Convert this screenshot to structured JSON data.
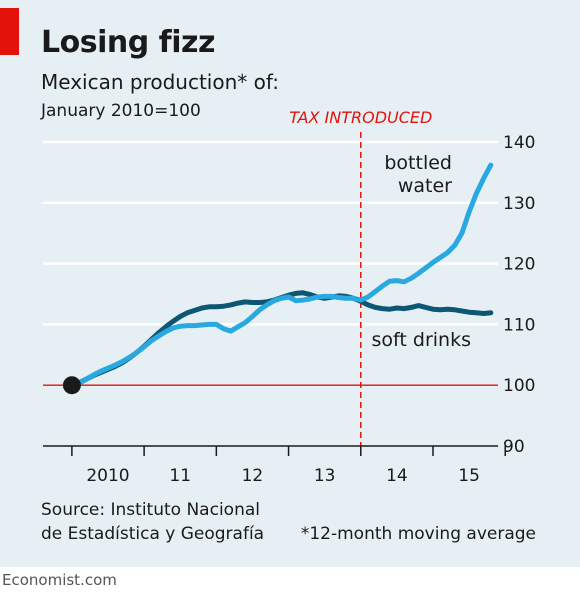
{
  "header": {
    "title": "Losing fizz",
    "subtitle": "Mexican production* of:",
    "unit": "January 2010=100"
  },
  "footer": {
    "source_line1": "Source: Instituto Nacional",
    "source_line2": "de Estadística y Geografía",
    "note": "*12-month moving average",
    "brand": "Economist.com"
  },
  "colors": {
    "panel_bg": "#e6f0f4",
    "bottled_water": "#2aa8e0",
    "soft_drinks": "#0e5774",
    "tax_line": "#e3120b",
    "baseline": "#e3120b"
  },
  "chart_data": {
    "type": "line",
    "title": "Losing fizz",
    "subtitle": "Mexican production* of:",
    "ylabel": "January 2010=100",
    "ylim": [
      90,
      140
    ],
    "yticks": [
      90,
      100,
      110,
      120,
      130,
      140
    ],
    "xlim": [
      2009.6,
      2015.9
    ],
    "xticks": [
      {
        "x": 2010.5,
        "label": "2010"
      },
      {
        "x": 2011.5,
        "label": "11"
      },
      {
        "x": 2012.5,
        "label": "12"
      },
      {
        "x": 2013.5,
        "label": "13"
      },
      {
        "x": 2014.5,
        "label": "14"
      },
      {
        "x": 2015.5,
        "label": "15"
      }
    ],
    "grid": true,
    "tax_event": {
      "x": 2014.0,
      "label": "TAX INTRODUCED"
    },
    "start_marker": {
      "x": 2010.0,
      "y": 100
    },
    "series": [
      {
        "name": "bottled water",
        "color": "#2aa8e0",
        "label_lines": [
          "bottled",
          "water"
        ],
        "points": [
          [
            2010.0,
            100.0
          ],
          [
            2010.1,
            100.3
          ],
          [
            2010.2,
            101.0
          ],
          [
            2010.3,
            101.7
          ],
          [
            2010.4,
            102.3
          ],
          [
            2010.5,
            102.8
          ],
          [
            2010.6,
            103.3
          ],
          [
            2010.7,
            103.9
          ],
          [
            2010.8,
            104.6
          ],
          [
            2010.9,
            105.4
          ],
          [
            2011.0,
            106.3
          ],
          [
            2011.1,
            107.3
          ],
          [
            2011.2,
            108.1
          ],
          [
            2011.3,
            108.8
          ],
          [
            2011.4,
            109.4
          ],
          [
            2011.5,
            109.7
          ],
          [
            2011.6,
            109.8
          ],
          [
            2011.7,
            109.8
          ],
          [
            2011.8,
            109.9
          ],
          [
            2011.9,
            110.0
          ],
          [
            2012.0,
            110.0
          ],
          [
            2012.1,
            109.3
          ],
          [
            2012.2,
            108.9
          ],
          [
            2012.3,
            109.6
          ],
          [
            2012.4,
            110.3
          ],
          [
            2012.5,
            111.3
          ],
          [
            2012.6,
            112.4
          ],
          [
            2012.7,
            113.2
          ],
          [
            2012.8,
            113.9
          ],
          [
            2012.9,
            114.3
          ],
          [
            2013.0,
            114.5
          ],
          [
            2013.1,
            113.9
          ],
          [
            2013.2,
            114.0
          ],
          [
            2013.3,
            114.2
          ],
          [
            2013.4,
            114.5
          ],
          [
            2013.5,
            114.6
          ],
          [
            2013.6,
            114.6
          ],
          [
            2013.7,
            114.4
          ],
          [
            2013.8,
            114.3
          ],
          [
            2013.9,
            114.3
          ],
          [
            2014.0,
            114.0
          ],
          [
            2014.1,
            114.5
          ],
          [
            2014.2,
            115.4
          ],
          [
            2014.3,
            116.3
          ],
          [
            2014.4,
            117.1
          ],
          [
            2014.5,
            117.2
          ],
          [
            2014.6,
            117.0
          ],
          [
            2014.7,
            117.6
          ],
          [
            2014.8,
            118.4
          ],
          [
            2014.9,
            119.3
          ],
          [
            2015.0,
            120.2
          ],
          [
            2015.1,
            121.0
          ],
          [
            2015.2,
            121.8
          ],
          [
            2015.3,
            123.0
          ],
          [
            2015.4,
            125.0
          ],
          [
            2015.5,
            128.5
          ],
          [
            2015.6,
            131.5
          ],
          [
            2015.7,
            134.0
          ],
          [
            2015.8,
            136.2
          ]
        ]
      },
      {
        "name": "soft drinks",
        "color": "#0e5774",
        "label_lines": [
          "soft drinks"
        ],
        "points": [
          [
            2010.0,
            100.0
          ],
          [
            2010.1,
            100.4
          ],
          [
            2010.2,
            101.0
          ],
          [
            2010.3,
            101.6
          ],
          [
            2010.4,
            102.1
          ],
          [
            2010.5,
            102.6
          ],
          [
            2010.6,
            103.1
          ],
          [
            2010.7,
            103.7
          ],
          [
            2010.8,
            104.5
          ],
          [
            2010.9,
            105.4
          ],
          [
            2011.0,
            106.4
          ],
          [
            2011.1,
            107.5
          ],
          [
            2011.2,
            108.6
          ],
          [
            2011.3,
            109.6
          ],
          [
            2011.4,
            110.5
          ],
          [
            2011.5,
            111.3
          ],
          [
            2011.6,
            111.9
          ],
          [
            2011.7,
            112.3
          ],
          [
            2011.8,
            112.7
          ],
          [
            2011.9,
            112.9
          ],
          [
            2012.0,
            112.9
          ],
          [
            2012.1,
            113.0
          ],
          [
            2012.2,
            113.2
          ],
          [
            2012.3,
            113.5
          ],
          [
            2012.4,
            113.7
          ],
          [
            2012.5,
            113.6
          ],
          [
            2012.6,
            113.6
          ],
          [
            2012.7,
            113.7
          ],
          [
            2012.8,
            114.0
          ],
          [
            2012.9,
            114.4
          ],
          [
            2013.0,
            114.8
          ],
          [
            2013.1,
            115.1
          ],
          [
            2013.2,
            115.2
          ],
          [
            2013.3,
            114.9
          ],
          [
            2013.4,
            114.5
          ],
          [
            2013.5,
            114.3
          ],
          [
            2013.6,
            114.5
          ],
          [
            2013.7,
            114.7
          ],
          [
            2013.8,
            114.6
          ],
          [
            2013.9,
            114.3
          ],
          [
            2014.0,
            113.8
          ],
          [
            2014.1,
            113.2
          ],
          [
            2014.2,
            112.8
          ],
          [
            2014.3,
            112.6
          ],
          [
            2014.4,
            112.5
          ],
          [
            2014.5,
            112.7
          ],
          [
            2014.6,
            112.6
          ],
          [
            2014.7,
            112.8
          ],
          [
            2014.8,
            113.1
          ],
          [
            2014.9,
            112.8
          ],
          [
            2015.0,
            112.5
          ],
          [
            2015.1,
            112.4
          ],
          [
            2015.2,
            112.5
          ],
          [
            2015.3,
            112.4
          ],
          [
            2015.4,
            112.2
          ],
          [
            2015.5,
            112.0
          ],
          [
            2015.6,
            111.9
          ],
          [
            2015.7,
            111.8
          ],
          [
            2015.8,
            111.9
          ]
        ]
      }
    ]
  }
}
